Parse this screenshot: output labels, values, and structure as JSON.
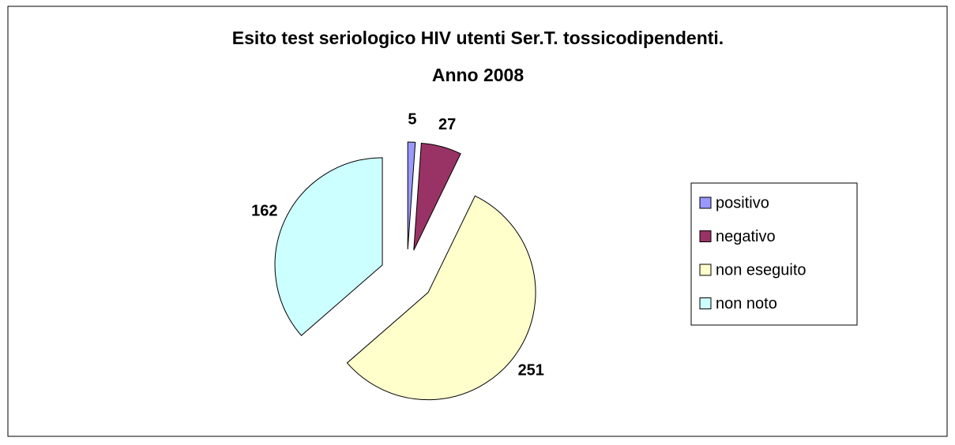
{
  "chart_data": {
    "type": "pie",
    "title": [
      "Esito test seriologico HIV utenti Ser.T. tossicodipendenti.",
      "Anno 2008"
    ],
    "categories": [
      "positivo",
      "negativo",
      "non eseguito",
      "non noto"
    ],
    "values": [
      5,
      27,
      251,
      162
    ],
    "colors": [
      "#9999ff",
      "#993366",
      "#ffffcc",
      "#ccffff"
    ],
    "exploded": true,
    "legend": "right"
  }
}
